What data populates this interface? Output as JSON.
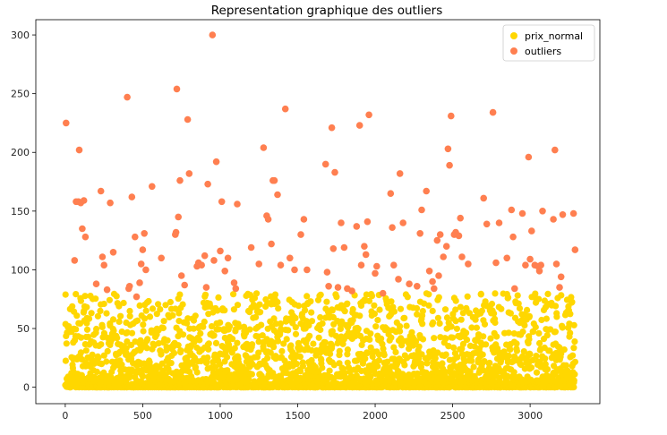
{
  "chart_data": {
    "type": "scatter",
    "title": "Representation graphique des outliers",
    "xlabel": "",
    "ylabel": "",
    "xlim": [
      -190,
      3450
    ],
    "ylim": [
      -14,
      313
    ],
    "xticks": [
      0,
      500,
      1000,
      1500,
      2000,
      2500,
      3000
    ],
    "yticks": [
      0,
      50,
      100,
      150,
      200,
      250,
      300
    ],
    "legend_position": "top-right",
    "grid": false,
    "series": [
      {
        "name": "prix_normal",
        "color": "#ffd700",
        "x_range": [
          0,
          3290
        ],
        "y_range": [
          0,
          80
        ],
        "count_estimate": 2900
      },
      {
        "name": "outliers",
        "color": "#ff7f50",
        "points": [
          [
            5,
            225
          ],
          [
            90,
            202
          ],
          [
            70,
            158
          ],
          [
            85,
            158
          ],
          [
            100,
            157
          ],
          [
            120,
            159
          ],
          [
            60,
            108
          ],
          [
            110,
            135
          ],
          [
            130,
            128
          ],
          [
            200,
            88
          ],
          [
            230,
            167
          ],
          [
            240,
            111
          ],
          [
            250,
            104
          ],
          [
            270,
            83
          ],
          [
            290,
            157
          ],
          [
            310,
            115
          ],
          [
            400,
            247
          ],
          [
            410,
            84
          ],
          [
            415,
            86
          ],
          [
            430,
            162
          ],
          [
            450,
            128
          ],
          [
            460,
            77
          ],
          [
            480,
            89
          ],
          [
            490,
            105
          ],
          [
            500,
            117
          ],
          [
            510,
            131
          ],
          [
            520,
            100
          ],
          [
            560,
            171
          ],
          [
            620,
            110
          ],
          [
            720,
            254
          ],
          [
            710,
            130
          ],
          [
            715,
            132
          ],
          [
            730,
            145
          ],
          [
            740,
            176
          ],
          [
            750,
            95
          ],
          [
            770,
            87
          ],
          [
            790,
            228
          ],
          [
            800,
            182
          ],
          [
            850,
            103
          ],
          [
            860,
            106
          ],
          [
            880,
            104
          ],
          [
            900,
            112
          ],
          [
            910,
            85
          ],
          [
            920,
            173
          ],
          [
            950,
            300
          ],
          [
            960,
            108
          ],
          [
            975,
            192
          ],
          [
            1000,
            116
          ],
          [
            1010,
            158
          ],
          [
            1030,
            99
          ],
          [
            1050,
            110
          ],
          [
            1090,
            89
          ],
          [
            1100,
            84
          ],
          [
            1110,
            156
          ],
          [
            1200,
            119
          ],
          [
            1250,
            105
          ],
          [
            1280,
            204
          ],
          [
            1300,
            146
          ],
          [
            1310,
            143
          ],
          [
            1330,
            122
          ],
          [
            1340,
            176
          ],
          [
            1350,
            176
          ],
          [
            1370,
            164
          ],
          [
            1390,
            104
          ],
          [
            1420,
            237
          ],
          [
            1450,
            110
          ],
          [
            1480,
            100
          ],
          [
            1520,
            130
          ],
          [
            1540,
            143
          ],
          [
            1560,
            100
          ],
          [
            1680,
            190
          ],
          [
            1690,
            98
          ],
          [
            1700,
            86
          ],
          [
            1720,
            221
          ],
          [
            1730,
            118
          ],
          [
            1740,
            183
          ],
          [
            1760,
            85
          ],
          [
            1780,
            140
          ],
          [
            1800,
            119
          ],
          [
            1820,
            84
          ],
          [
            1850,
            82
          ],
          [
            1880,
            137
          ],
          [
            1900,
            223
          ],
          [
            1910,
            104
          ],
          [
            1930,
            120
          ],
          [
            1940,
            113
          ],
          [
            1950,
            141
          ],
          [
            1960,
            232
          ],
          [
            2000,
            97
          ],
          [
            2010,
            103
          ],
          [
            2050,
            80
          ],
          [
            2100,
            165
          ],
          [
            2110,
            136
          ],
          [
            2120,
            104
          ],
          [
            2150,
            92
          ],
          [
            2160,
            182
          ],
          [
            2180,
            140
          ],
          [
            2220,
            88
          ],
          [
            2270,
            86
          ],
          [
            2290,
            131
          ],
          [
            2300,
            151
          ],
          [
            2330,
            167
          ],
          [
            2350,
            99
          ],
          [
            2370,
            90
          ],
          [
            2380,
            84
          ],
          [
            2400,
            125
          ],
          [
            2410,
            95
          ],
          [
            2420,
            130
          ],
          [
            2440,
            111
          ],
          [
            2460,
            120
          ],
          [
            2470,
            203
          ],
          [
            2480,
            189
          ],
          [
            2490,
            231
          ],
          [
            2510,
            130
          ],
          [
            2520,
            132
          ],
          [
            2540,
            129
          ],
          [
            2550,
            144
          ],
          [
            2560,
            111
          ],
          [
            2600,
            105
          ],
          [
            2700,
            161
          ],
          [
            2720,
            139
          ],
          [
            2760,
            234
          ],
          [
            2780,
            106
          ],
          [
            2800,
            140
          ],
          [
            2850,
            110
          ],
          [
            2880,
            151
          ],
          [
            2890,
            128
          ],
          [
            2900,
            84
          ],
          [
            2950,
            148
          ],
          [
            2970,
            104
          ],
          [
            2990,
            196
          ],
          [
            3000,
            109
          ],
          [
            3010,
            133
          ],
          [
            3030,
            104
          ],
          [
            3050,
            103
          ],
          [
            3060,
            99
          ],
          [
            3070,
            104
          ],
          [
            3080,
            150
          ],
          [
            3150,
            143
          ],
          [
            3160,
            202
          ],
          [
            3170,
            105
          ],
          [
            3190,
            85
          ],
          [
            3200,
            94
          ],
          [
            3210,
            147
          ],
          [
            3280,
            148
          ],
          [
            3290,
            117
          ]
        ]
      }
    ]
  }
}
